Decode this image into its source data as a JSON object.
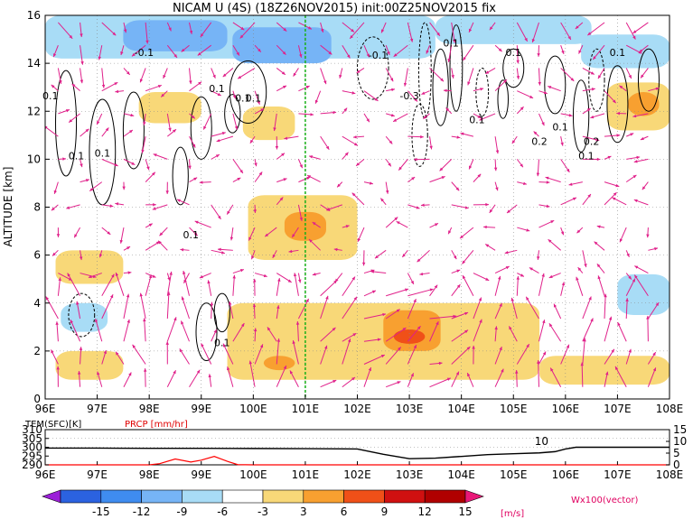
{
  "chart_data": [
    {
      "type": "heatmap",
      "title": "NICAM U (4S) (18Z26NOV2015) init:00Z25NOV2015 fix",
      "ylabel": "ALTITUDE [km]",
      "x_ticks": [
        "96E",
        "97E",
        "98E",
        "99E",
        "100E",
        "101E",
        "102E",
        "103E",
        "104E",
        "105E",
        "106E",
        "107E",
        "108E"
      ],
      "x_range": [
        96,
        108
      ],
      "y_ticks": [
        "0",
        "2",
        "4",
        "6",
        "8",
        "10",
        "12",
        "14",
        "16"
      ],
      "y_range": [
        0,
        16
      ],
      "marker_longitude": 101,
      "contour_labels": [
        "0.1",
        "0.1",
        "-0.1",
        "0.1",
        "0.1",
        "0.1",
        "0.1",
        "-0.3",
        "0.1",
        "0.1",
        "0.1",
        "-0.1",
        "0.1",
        "0.1",
        "0.2",
        "0.1",
        "0.1",
        "0.2",
        "0.1"
      ],
      "shaded_regions": [
        {
          "lon": [
            96.0,
            103.5
          ],
          "alt": [
            14.2,
            16
          ],
          "value": -3
        },
        {
          "lon": [
            97.5,
            99.5
          ],
          "alt": [
            14.5,
            15.8
          ],
          "value": -6
        },
        {
          "lon": [
            99.6,
            101.5
          ],
          "alt": [
            14.0,
            15.5
          ],
          "value": -6
        },
        {
          "lon": [
            103.5,
            106.5
          ],
          "alt": [
            14.8,
            16
          ],
          "value": -3
        },
        {
          "lon": [
            106.3,
            108
          ],
          "alt": [
            13.8,
            15.2
          ],
          "value": -3
        },
        {
          "lon": [
            97.8,
            99.0
          ],
          "alt": [
            11.5,
            12.8
          ],
          "value": 3
        },
        {
          "lon": [
            99.8,
            100.8
          ],
          "alt": [
            10.8,
            12.2
          ],
          "value": 3
        },
        {
          "lon": [
            106.8,
            108
          ],
          "alt": [
            11.2,
            13.2
          ],
          "value": 3
        },
        {
          "lon": [
            107.2,
            107.8
          ],
          "alt": [
            11.8,
            12.8
          ],
          "value": 6
        },
        {
          "lon": [
            99.9,
            102.0
          ],
          "alt": [
            5.8,
            8.5
          ],
          "value": 3
        },
        {
          "lon": [
            100.6,
            101.4
          ],
          "alt": [
            6.6,
            7.8
          ],
          "value": 6
        },
        {
          "lon": [
            96.2,
            97.5
          ],
          "alt": [
            4.8,
            6.2
          ],
          "value": 3
        },
        {
          "lon": [
            99.5,
            105.5
          ],
          "alt": [
            0.8,
            4.0
          ],
          "value": 3
        },
        {
          "lon": [
            102.5,
            103.6
          ],
          "alt": [
            2.0,
            3.7
          ],
          "value": 6
        },
        {
          "lon": [
            102.7,
            103.3
          ],
          "alt": [
            2.3,
            2.9
          ],
          "value": 9
        },
        {
          "lon": [
            100.2,
            100.8
          ],
          "alt": [
            1.2,
            1.8
          ],
          "value": 6
        },
        {
          "lon": [
            105.5,
            108
          ],
          "alt": [
            0.6,
            1.8
          ],
          "value": 3
        },
        {
          "lon": [
            96.2,
            97.5
          ],
          "alt": [
            0.8,
            2.0
          ],
          "value": 3
        },
        {
          "lon": [
            96.3,
            97.2
          ],
          "alt": [
            2.8,
            4.0
          ],
          "value": -3
        },
        {
          "lon": [
            107.0,
            108
          ],
          "alt": [
            3.5,
            5.2
          ],
          "value": -3
        }
      ]
    },
    {
      "type": "line",
      "labels_left": {
        "tem": "TEM(SFC)[K]",
        "prcp": "PRCP [mm/hr]"
      },
      "left_axis_ticks": [
        "310",
        "305",
        "300",
        "295",
        "290"
      ],
      "left_axis_range": [
        290,
        310
      ],
      "right_axis_ticks": [
        "15",
        "10",
        "5",
        "0"
      ],
      "right_axis_range": [
        0,
        15
      ],
      "x_ticks": [
        "96E",
        "97E",
        "98E",
        "99E",
        "100E",
        "101E",
        "102E",
        "103E",
        "104E",
        "105E",
        "106E",
        "107E",
        "108E"
      ],
      "annotation": "10",
      "series": [
        {
          "name": "TEM(SFC)[K]",
          "color": "#000000",
          "x": [
            96,
            97,
            98,
            99,
            100,
            101,
            102,
            102.5,
            103,
            103.5,
            104,
            104.5,
            105,
            105.5,
            105.8,
            106,
            106.2,
            107,
            108
          ],
          "y": [
            299.5,
            299.5,
            299.4,
            299.4,
            299.3,
            299.2,
            299.0,
            296.0,
            293.5,
            293.8,
            294.8,
            295.8,
            296.3,
            296.8,
            297.5,
            299.0,
            300.0,
            300.0,
            300.0
          ]
        },
        {
          "name": "PRCP [mm/hr]",
          "color": "#ff0000",
          "x": [
            96,
            98,
            98.2,
            98.5,
            98.8,
            99.0,
            99.25,
            99.5,
            99.7,
            100,
            108
          ],
          "y": [
            0,
            0,
            0.5,
            2.5,
            1.2,
            2.0,
            3.6,
            1.5,
            0.1,
            0,
            0
          ]
        }
      ]
    },
    {
      "type": "colorbar",
      "ticks": [
        "-15",
        "-12",
        "-9",
        "-6",
        "-3",
        "3",
        "6",
        "9",
        "12",
        "15"
      ],
      "unit": "[m/s]",
      "colors": [
        "#9b20d8",
        "#2b62e0",
        "#3f8cf0",
        "#76b4f6",
        "#a8dcf6",
        "#ffffff",
        "#f8d878",
        "#f8a030",
        "#f05018",
        "#d01010",
        "#b00000",
        "#e81878"
      ],
      "vector_label": "Wx100(vector)"
    }
  ]
}
